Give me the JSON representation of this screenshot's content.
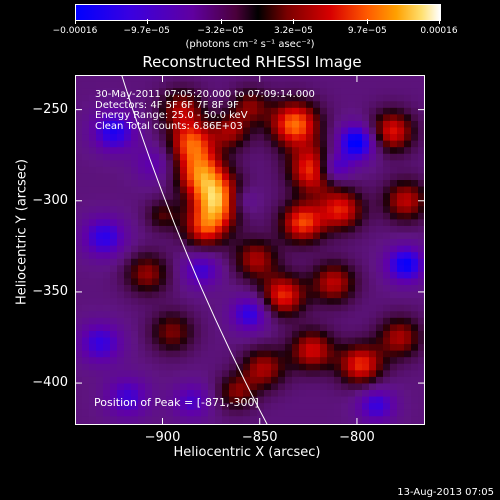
{
  "chart_data": {
    "type": "heatmap",
    "title": "Reconstructed RHESSI Image",
    "xlabel": "Heliocentric X (arcsec)",
    "ylabel": "Heliocentric Y (arcsec)",
    "xlim": [
      -945,
      -765
    ],
    "ylim": [
      -423,
      -231
    ],
    "x_ticks": [
      -900,
      -850,
      -800
    ],
    "y_ticks": [
      -250,
      -300,
      -350,
      -400
    ],
    "x_tick_labels": [
      "−900",
      "−850",
      "−800"
    ],
    "y_tick_labels": [
      "−250",
      "−300",
      "−350",
      "−400"
    ],
    "colorbar": {
      "range": [
        -0.00016,
        0.00016
      ],
      "ticks": [
        -0.00016,
        -9.7e-05,
        -3.2e-05,
        3.2e-05,
        9.7e-05,
        0.00016
      ],
      "tick_labels": [
        "−0.00016",
        "−9.7e−05",
        "−3.2e−05",
        "3.2e−05",
        "9.7e−05",
        "0.00016"
      ],
      "units": "(photons cm⁻² s⁻¹ asec⁻²)"
    },
    "annotations": [
      "30-May-2011 07:05:20.000 to 07:09:14.000",
      "Detectors: 4F 5F 6F 7F 8F 9F",
      "Energy Range: 25.0 - 50.0 keV",
      "Clean    Total counts: 6.86E+03"
    ],
    "peak_label": "Position of Peak = [-871,-300]",
    "peak_position": [
      -871,
      -300
    ],
    "blobs": [
      {
        "x": -871,
        "y": -300,
        "v": 1.0,
        "s": 9
      },
      {
        "x": -880,
        "y": -285,
        "v": 0.85,
        "s": 9
      },
      {
        "x": -885,
        "y": -268,
        "v": 0.75,
        "s": 8
      },
      {
        "x": -878,
        "y": -315,
        "v": 0.7,
        "s": 8
      },
      {
        "x": -890,
        "y": -250,
        "v": 0.55,
        "s": 8
      },
      {
        "x": -865,
        "y": -262,
        "v": 0.5,
        "s": 7
      },
      {
        "x": -855,
        "y": -248,
        "v": 0.45,
        "s": 7
      },
      {
        "x": -852,
        "y": -332,
        "v": 0.55,
        "s": 8
      },
      {
        "x": -832,
        "y": -258,
        "v": 0.9,
        "s": 9
      },
      {
        "x": -822,
        "y": -283,
        "v": 0.85,
        "s": 9
      },
      {
        "x": -828,
        "y": -312,
        "v": 0.8,
        "s": 8
      },
      {
        "x": -808,
        "y": -305,
        "v": 0.7,
        "s": 8
      },
      {
        "x": -838,
        "y": -352,
        "v": 0.75,
        "s": 8
      },
      {
        "x": -812,
        "y": -345,
        "v": 0.6,
        "s": 8
      },
      {
        "x": -798,
        "y": -390,
        "v": 0.75,
        "s": 8
      },
      {
        "x": -823,
        "y": -382,
        "v": 0.65,
        "s": 8
      },
      {
        "x": -848,
        "y": -392,
        "v": 0.55,
        "s": 8
      },
      {
        "x": -782,
        "y": -262,
        "v": 0.7,
        "s": 8
      },
      {
        "x": -775,
        "y": -300,
        "v": 0.6,
        "s": 8
      },
      {
        "x": -778,
        "y": -375,
        "v": 0.55,
        "s": 8
      },
      {
        "x": -908,
        "y": -340,
        "v": 0.5,
        "s": 8
      },
      {
        "x": -895,
        "y": -372,
        "v": 0.45,
        "s": 8
      },
      {
        "x": -862,
        "y": -405,
        "v": 0.45,
        "s": 7
      },
      {
        "x": -900,
        "y": -308,
        "v": 0.35,
        "s": 6
      },
      {
        "x": -800,
        "y": -268,
        "v": -0.8,
        "s": 7
      },
      {
        "x": -812,
        "y": -282,
        "v": -0.7,
        "s": 6
      },
      {
        "x": -775,
        "y": -335,
        "v": -0.7,
        "s": 7
      },
      {
        "x": -925,
        "y": -262,
        "v": -0.6,
        "s": 8
      },
      {
        "x": -930,
        "y": -320,
        "v": -0.55,
        "s": 8
      },
      {
        "x": -932,
        "y": -378,
        "v": -0.5,
        "s": 8
      },
      {
        "x": -918,
        "y": -408,
        "v": -0.45,
        "s": 8
      },
      {
        "x": -855,
        "y": -362,
        "v": -0.55,
        "s": 7
      },
      {
        "x": -880,
        "y": -338,
        "v": -0.45,
        "s": 7
      },
      {
        "x": -885,
        "y": -410,
        "v": -0.4,
        "s": 7
      },
      {
        "x": -790,
        "y": -412,
        "v": -0.5,
        "s": 7
      },
      {
        "x": -860,
        "y": -300,
        "v": -0.4,
        "s": 6
      },
      {
        "x": -905,
        "y": -280,
        "v": -0.3,
        "s": 7
      }
    ]
  },
  "footer": "13-Aug-2013 07:05"
}
